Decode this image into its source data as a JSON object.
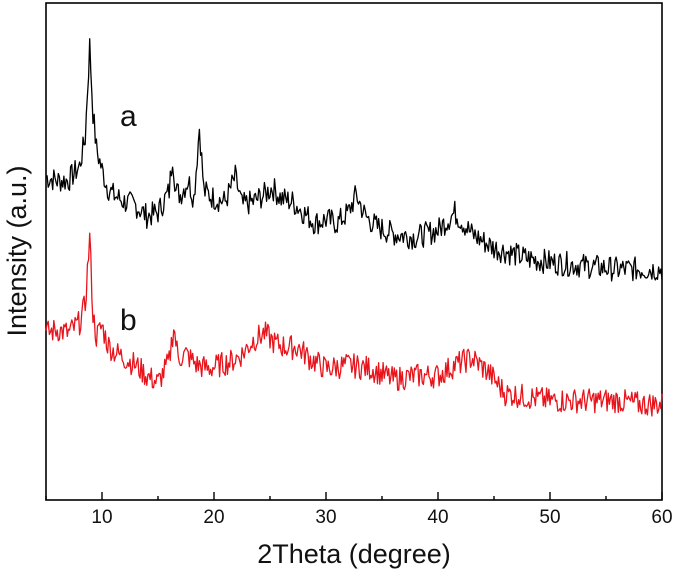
{
  "chart_data": {
    "type": "line",
    "title": "",
    "xlabel": "2Theta (degree)",
    "ylabel": "Intensity (a.u.)",
    "xlim": [
      5,
      60
    ],
    "x_ticks": [
      10,
      20,
      30,
      40,
      50,
      60
    ],
    "y_ticks": [],
    "grid": false,
    "legend": "none",
    "series": [
      {
        "name": "a",
        "color": "#000000",
        "x": [
          5,
          6,
          7,
          8,
          8.5,
          8.9,
          9.2,
          9.5,
          10,
          10.5,
          11,
          12,
          13,
          14,
          15,
          16,
          16.3,
          16.6,
          17,
          17.7,
          18.2,
          18.7,
          19.1,
          20,
          21,
          21.9,
          22.5,
          23.5,
          24.5,
          25.2,
          26,
          27,
          28,
          29,
          30,
          31,
          32,
          32.7,
          33.5,
          34.5,
          36,
          38,
          40,
          41.5,
          43,
          45,
          48,
          50,
          53,
          56,
          58,
          60
        ],
        "values": [
          61,
          60,
          60,
          64,
          72,
          98,
          79,
          69,
          63,
          58,
          56,
          54,
          53,
          50,
          51,
          57,
          67,
          57,
          56,
          60,
          55,
          75,
          57,
          55,
          54,
          61,
          53,
          54,
          56,
          58,
          55,
          54,
          51,
          48,
          49,
          48,
          51,
          56,
          50,
          47,
          45,
          44,
          46,
          51,
          45,
          41,
          38,
          37,
          36,
          35,
          35,
          35
        ]
      },
      {
        "name": "b",
        "color": "#e8141c",
        "x": [
          5,
          6,
          7,
          8,
          8.5,
          8.9,
          9.2,
          9.5,
          10,
          10.5,
          11,
          12,
          13,
          14,
          15,
          16,
          16.4,
          16.8,
          17.5,
          18.5,
          19.5,
          20.5,
          21.5,
          22.5,
          23.5,
          24.5,
          25.5,
          26.5,
          27.5,
          28.5,
          30,
          32,
          34,
          36,
          38,
          40,
          41.5,
          43,
          44.5,
          46,
          48,
          50,
          53,
          56,
          58,
          60
        ],
        "values": [
          17,
          18,
          17,
          20,
          25,
          44,
          22,
          16,
          19,
          14,
          12,
          10,
          8,
          5,
          3,
          9,
          19,
          10,
          11,
          8,
          7,
          8,
          9,
          11,
          15,
          17,
          14,
          13,
          13,
          10,
          7,
          8,
          7,
          4,
          5,
          5,
          8,
          10,
          6,
          0,
          -1,
          -2,
          -2,
          -2,
          -3,
          -3
        ]
      }
    ],
    "annotations": [
      "a",
      "b"
    ]
  }
}
